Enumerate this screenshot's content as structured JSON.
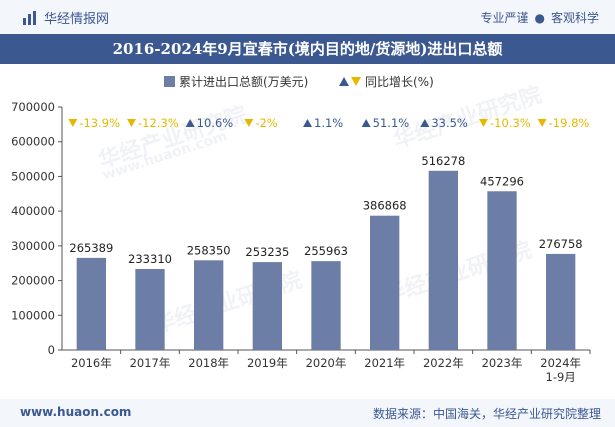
{
  "header": {
    "brand": "华经情报网",
    "tags": [
      "专业严谨",
      "客观科学"
    ]
  },
  "watermark": {
    "cn": "华经产业研究院",
    "url": "www.huaon.com"
  },
  "chart_data": {
    "type": "bar",
    "title": "2016-2024年9月宜春市(境内目的地/货源地)进出口总额",
    "categories": [
      "2016年",
      "2017年",
      "2018年",
      "2019年",
      "2020年",
      "2021年",
      "2022年",
      "2023年",
      "2024年\n1-9月"
    ],
    "series": [
      {
        "name": "累计进出口总额(万美元)",
        "type": "bar",
        "color": "#6d7ea6",
        "values": [
          265389,
          233310,
          258350,
          253235,
          255963,
          386868,
          516278,
          457296,
          276758
        ],
        "labels": [
          "265389",
          "233310",
          "258350",
          "253235",
          "255963",
          "386868",
          "516278",
          "457296",
          "276758"
        ]
      },
      {
        "name": "同比增长(%)",
        "type": "marker-text",
        "values": [
          -13.9,
          -12.3,
          10.6,
          -2,
          1.1,
          51.1,
          33.5,
          -10.3,
          -19.8
        ],
        "labels": [
          "-13.9%",
          "-12.3%",
          "10.6%",
          "-2%",
          "1.1%",
          "51.1%",
          "33.5%",
          "-10.3%",
          "-19.8%"
        ],
        "up_color": "#3b5891",
        "down_color": "#e6b800"
      }
    ],
    "ylim": [
      0,
      700000
    ],
    "yticks": [
      "0",
      "100000",
      "200000",
      "300000",
      "400000",
      "500000",
      "600000",
      "700000"
    ],
    "grid": false,
    "legend": "top-center"
  },
  "footer": {
    "url": "www.huaon.com",
    "source": "数据来源：中国海关，华经产业研究院整理"
  }
}
